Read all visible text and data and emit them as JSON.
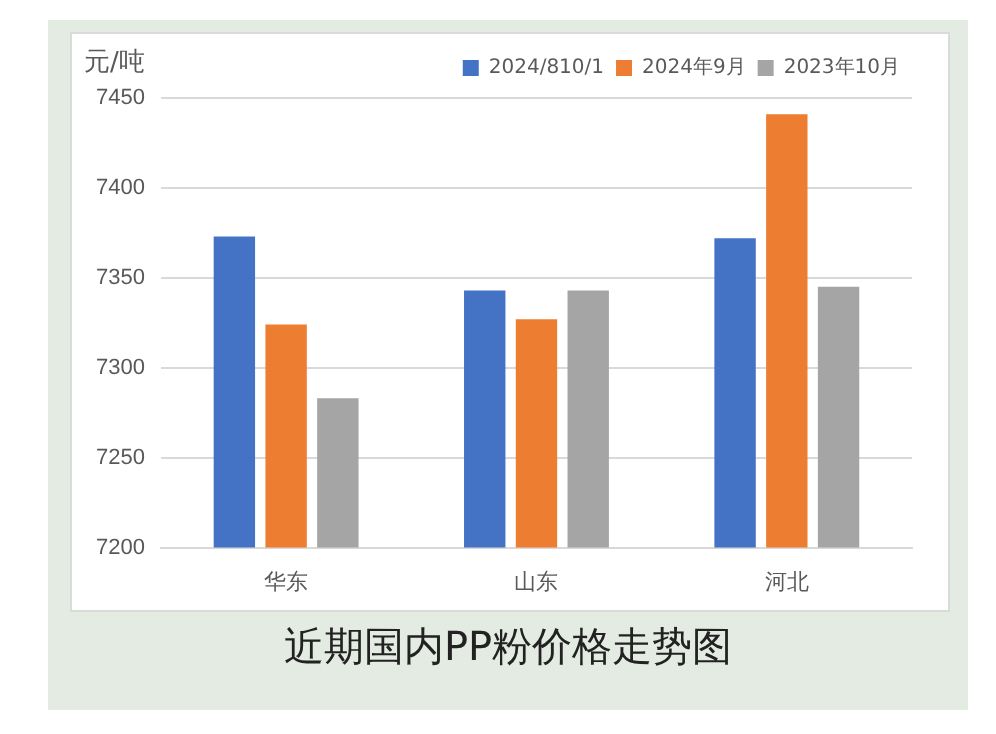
{
  "chart_data": {
    "type": "bar",
    "title": "近期国内PP粉价格走势图",
    "ylabel": "元/吨",
    "categories": [
      "华东",
      "山东",
      "河北"
    ],
    "series": [
      {
        "name": "2024/810/1",
        "color": "#4472c4",
        "values": [
          7373,
          7343,
          7372
        ]
      },
      {
        "name": "2024年9月",
        "color": "#ed7d31",
        "values": [
          7324,
          7327,
          7441
        ]
      },
      {
        "name": "2023年10月",
        "color": "#a5a5a5",
        "values": [
          7283,
          7343,
          7345
        ]
      }
    ],
    "ylim": [
      7200,
      7450
    ],
    "yticks": [
      7200,
      7250,
      7300,
      7350,
      7400,
      7450
    ],
    "grid": "y",
    "legend": "top right"
  }
}
